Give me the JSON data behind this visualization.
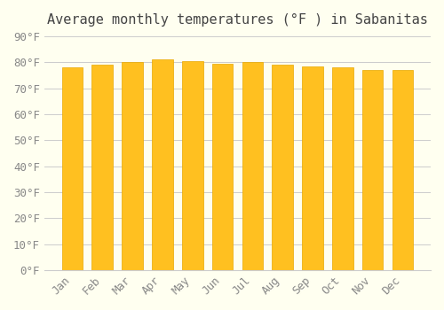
{
  "title": "Average monthly temperatures (°F ) in Sabanitas",
  "months": [
    "Jan",
    "Feb",
    "Mar",
    "Apr",
    "May",
    "Jun",
    "Jul",
    "Aug",
    "Sep",
    "Oct",
    "Nov",
    "Dec"
  ],
  "values": [
    78,
    79,
    80,
    81,
    80.5,
    79.5,
    80,
    79,
    78.5,
    78,
    77,
    77
  ],
  "ylim": [
    0,
    90
  ],
  "ytick_step": 10,
  "bar_color": "#FFC020",
  "bar_edge_color": "#E8A800",
  "background_color": "#FFFFF0",
  "grid_color": "#CCCCCC",
  "title_fontsize": 11,
  "tick_fontsize": 9,
  "font_family": "monospace"
}
